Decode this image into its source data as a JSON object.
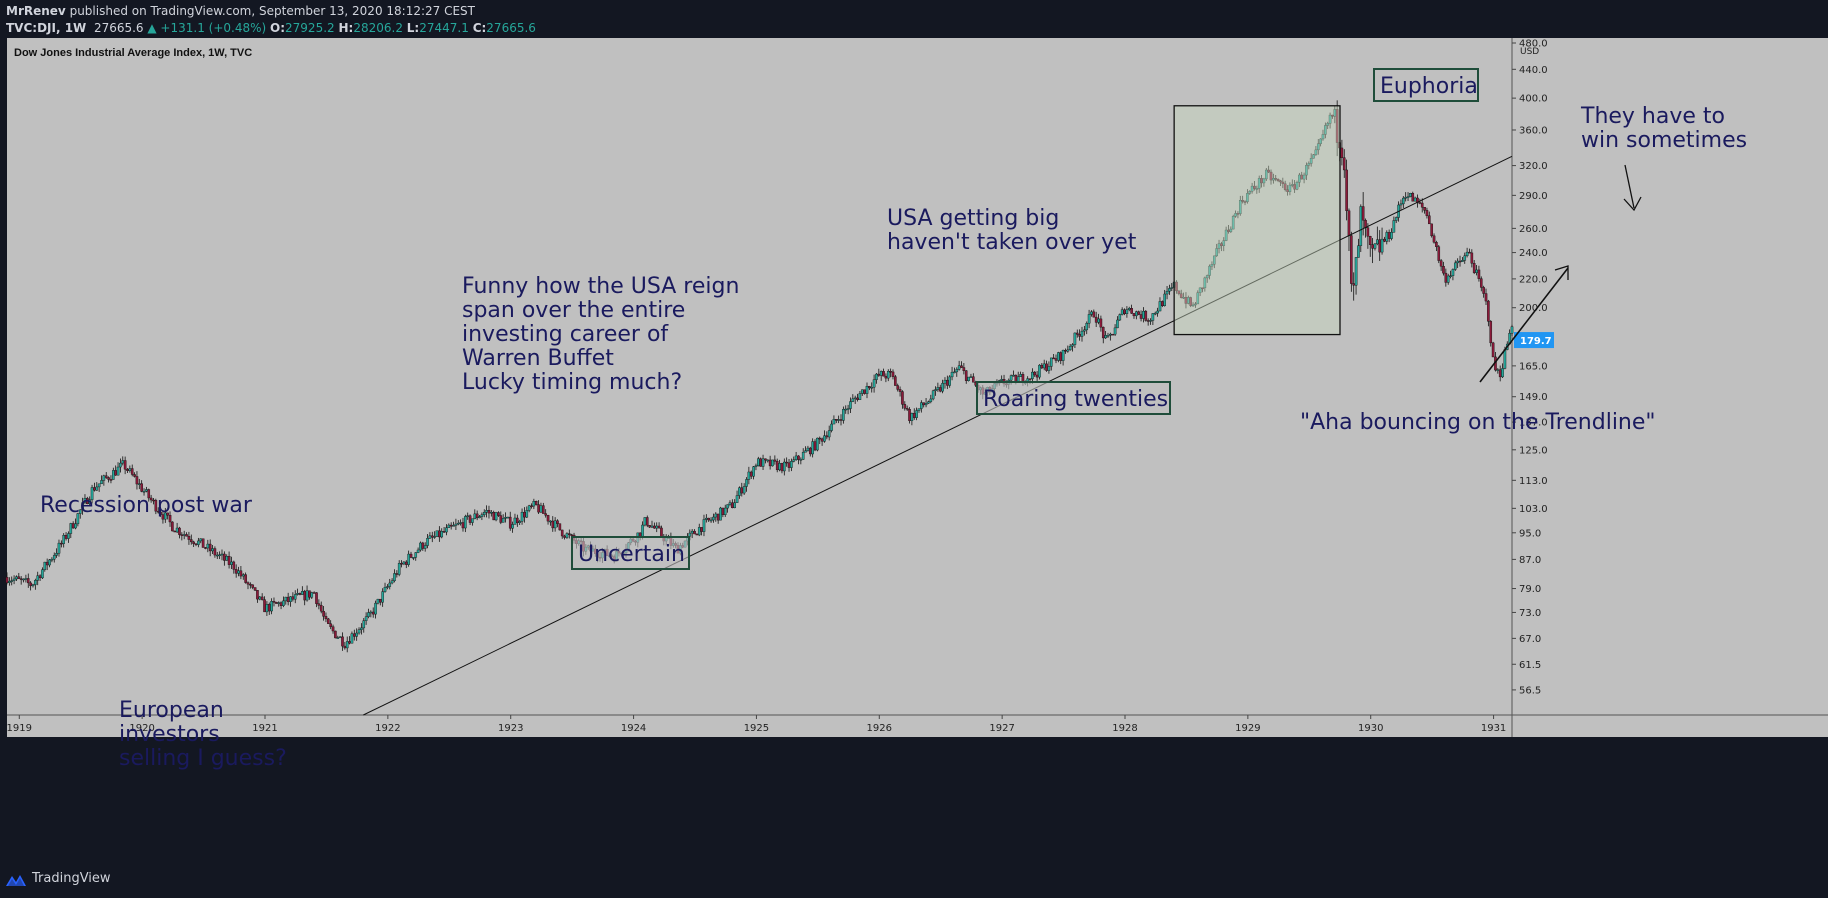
{
  "header": {
    "author": "MrRenev",
    "published_text": "published on TradingView.com, September 13, 2020 18:12:27 CEST",
    "symbol": "TVC:DJI, 1W",
    "last": "27665.6",
    "change": "▲ +131.1 (+0.48%)",
    "open_label": "O:",
    "open": "27925.2",
    "high_label": "H:",
    "high": "28206.2",
    "low_label": "L:",
    "low": "27447.1",
    "close_label": "C:",
    "close": "27665.6"
  },
  "footer": {
    "brand": "TradingView"
  },
  "colors": {
    "background": "#c0c0c0",
    "up": "#26a69a",
    "down": "#8b1a3a",
    "annotation": "#1a1a5e",
    "price_badge": "#2196f3",
    "frame": "#131722"
  },
  "chart_data": {
    "type": "candlestick",
    "title": "Dow Jones Industrial Average Index, 1W, TVC",
    "currency": "USD",
    "scale": "log",
    "ylim": [
      52,
      480
    ],
    "xlim": [
      1918.9,
      1931.15
    ],
    "x_ticks": [
      "1919",
      "1920",
      "1921",
      "1922",
      "1923",
      "1924",
      "1925",
      "1926",
      "1927",
      "1928",
      "1929",
      "1930",
      "1931"
    ],
    "y_ticks": [
      "480.0",
      "440.0",
      "400.0",
      "360.0",
      "320.0",
      "290.0",
      "260.0",
      "240.0",
      "220.0",
      "200.0",
      "179.7",
      "165.0",
      "149.0",
      "137.0",
      "125.0",
      "113.0",
      "103.0",
      "95.0",
      "87.0",
      "79.0",
      "73.0",
      "67.0",
      "61.5",
      "56.5"
    ],
    "current_price": "179.7",
    "price_path": [
      [
        1918.9,
        82
      ],
      [
        1919.1,
        80
      ],
      [
        1919.35,
        92
      ],
      [
        1919.6,
        110
      ],
      [
        1919.85,
        119
      ],
      [
        1920.05,
        107
      ],
      [
        1920.25,
        97
      ],
      [
        1920.5,
        91
      ],
      [
        1920.75,
        85
      ],
      [
        1921.0,
        74
      ],
      [
        1921.2,
        76
      ],
      [
        1921.4,
        78
      ],
      [
        1921.5,
        70
      ],
      [
        1921.65,
        66
      ],
      [
        1921.85,
        72
      ],
      [
        1922.1,
        85
      ],
      [
        1922.3,
        92
      ],
      [
        1922.55,
        97
      ],
      [
        1922.8,
        102
      ],
      [
        1923.0,
        98
      ],
      [
        1923.2,
        104
      ],
      [
        1923.4,
        96
      ],
      [
        1923.6,
        90
      ],
      [
        1923.85,
        88
      ],
      [
        1924.05,
        95
      ],
      [
        1924.1,
        99
      ],
      [
        1924.35,
        90
      ],
      [
        1924.55,
        97
      ],
      [
        1924.8,
        104
      ],
      [
        1925.0,
        120
      ],
      [
        1925.25,
        118
      ],
      [
        1925.5,
        128
      ],
      [
        1925.8,
        148
      ],
      [
        1926.0,
        160
      ],
      [
        1926.1,
        160
      ],
      [
        1926.25,
        139
      ],
      [
        1926.45,
        150
      ],
      [
        1926.65,
        164
      ],
      [
        1926.85,
        150
      ],
      [
        1927.0,
        156
      ],
      [
        1927.25,
        160
      ],
      [
        1927.5,
        172
      ],
      [
        1927.75,
        197
      ],
      [
        1927.85,
        178
      ],
      [
        1928.0,
        200
      ],
      [
        1928.2,
        193
      ],
      [
        1928.4,
        215
      ],
      [
        1928.55,
        200
      ],
      [
        1928.75,
        240
      ],
      [
        1928.95,
        285
      ],
      [
        1929.15,
        310
      ],
      [
        1929.35,
        295
      ],
      [
        1929.55,
        330
      ],
      [
        1929.68,
        380
      ],
      [
        1929.78,
        340
      ],
      [
        1929.85,
        200
      ],
      [
        1929.92,
        270
      ],
      [
        1930.0,
        235
      ],
      [
        1930.15,
        255
      ],
      [
        1930.28,
        293
      ],
      [
        1930.45,
        275
      ],
      [
        1930.6,
        220
      ],
      [
        1930.8,
        240
      ],
      [
        1930.95,
        200
      ],
      [
        1931.0,
        165
      ],
      [
        1931.05,
        160
      ],
      [
        1931.15,
        190
      ]
    ],
    "trendline": [
      [
        1921.8,
        52
      ],
      [
        1931.15,
        330
      ]
    ],
    "euphoria_box": {
      "x": [
        1928.4,
        1929.75
      ],
      "y": [
        183,
        390
      ]
    },
    "annotations": [
      {
        "text": "Recession post war",
        "boxed": false
      },
      {
        "text": "European\ninvestors\nselling I guess?",
        "boxed": false
      },
      {
        "text": "Funny how the USA reign\nspan over the entire\ninvesting career of\nWarren Buffet\nLucky timing much?",
        "boxed": false
      },
      {
        "text": "Uncertain",
        "boxed": true
      },
      {
        "text": "USA getting big\nhaven't taken over yet",
        "boxed": false
      },
      {
        "text": "Roaring twenties",
        "boxed": true
      },
      {
        "text": "Euphoria",
        "boxed": true
      },
      {
        "text": "They have to\nwin sometimes",
        "boxed": false
      },
      {
        "text": "\"Aha bouncing on the Trendline\"",
        "boxed": false
      }
    ]
  }
}
